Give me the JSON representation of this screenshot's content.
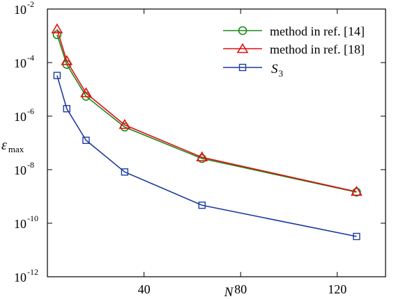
{
  "chart_data": {
    "type": "line",
    "title": "",
    "xlabel": "N",
    "ylabel": {
      "main": "ε",
      "sub": "max"
    },
    "xscale": "linear",
    "yscale": "log",
    "xlim": [
      0,
      140
    ],
    "ylim_exponents": [
      -12,
      -2
    ],
    "x_ticks": [
      {
        "value": 40,
        "label": "40"
      },
      {
        "value": 80,
        "label": "80"
      },
      {
        "value": 120,
        "label": "120"
      }
    ],
    "y_ticks": [
      {
        "exp": -12,
        "base": "10",
        "power": "-12"
      },
      {
        "exp": -10,
        "base": "10",
        "power": "-10"
      },
      {
        "exp": -8,
        "base": "10",
        "power": "-8"
      },
      {
        "exp": -6,
        "base": "10",
        "power": "-6"
      },
      {
        "exp": -4,
        "base": "10",
        "power": "-4"
      },
      {
        "exp": -2,
        "base": "10",
        "power": "-2"
      }
    ],
    "grid": false,
    "legend_position": "top-right",
    "series": [
      {
        "name": "method in ref. [14]",
        "color": "#1a8a1a",
        "marker": "circle",
        "x": [
          4,
          8,
          16,
          32,
          64,
          128
        ],
        "y": [
          0.0011,
          8.5e-05,
          5.5e-06,
          3.9e-07,
          2.6e-08,
          1.45e-09
        ]
      },
      {
        "name": "method in ref. [18]",
        "color": "#e01010",
        "marker": "triangle",
        "x": [
          4,
          8,
          16,
          32,
          64,
          128
        ],
        "y": [
          0.00175,
          0.000115,
          7.2e-06,
          4.7e-07,
          2.9e-08,
          1.5e-09
        ]
      },
      {
        "name": "S",
        "name_sub": "3",
        "color": "#1c3c9c",
        "marker": "square",
        "x": [
          4,
          8,
          16,
          32,
          64,
          128
        ],
        "y": [
          3.3e-05,
          1.9e-06,
          1.25e-07,
          8.2e-09,
          4.7e-10,
          3.2e-11
        ]
      }
    ]
  }
}
